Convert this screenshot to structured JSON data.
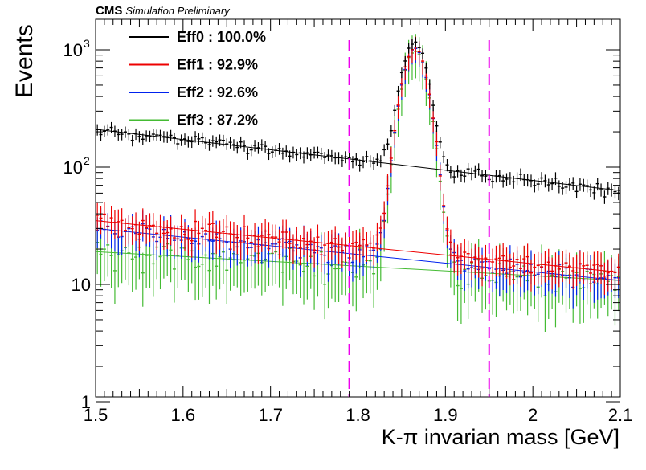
{
  "header": {
    "experiment": "CMS",
    "status": "Simulation Preliminary"
  },
  "chart_data": {
    "type": "scatter",
    "xlabel": "K-π invarian mass [GeV]",
    "ylabel": "Events",
    "xlim": [
      1.5,
      2.1
    ],
    "ylim": [
      1,
      2000
    ],
    "y_scale": "log",
    "x_ticks": [
      "1.5",
      "1.6",
      "1.7",
      "1.8",
      "1.9",
      "2",
      "2.1"
    ],
    "y_ticks": [
      {
        "value": 1,
        "label": "1"
      },
      {
        "value": 10,
        "label": "10"
      },
      {
        "value": 100,
        "label": "10",
        "exponent": "2"
      },
      {
        "value": 1000,
        "label": "10",
        "exponent": "3"
      }
    ],
    "grid": false,
    "legend_position": "top-left",
    "vertical_lines": [
      1.79,
      1.95
    ],
    "vertical_line_color": "#ee00ee",
    "bin_width": 0.004,
    "series": [
      {
        "name": "Eff0 : 100.0%",
        "color": "#000000",
        "background_fit": {
          "x0": 1.5,
          "y0": 210,
          "x1": 2.1,
          "y1": 63
        },
        "background_noise_frac": 0.1,
        "peak": {
          "mean": 1.865,
          "sigma": 0.0125,
          "amplitude": 1060
        },
        "error_frac": 0.09
      },
      {
        "name": "Eff1 : 92.9%",
        "color": "#ee0000",
        "background_fit": {
          "x0": 1.5,
          "y0": 35,
          "x1": 2.1,
          "y1": 12.7
        },
        "background_noise_frac": 0.18,
        "peak": {
          "mean": 1.865,
          "sigma": 0.0125,
          "amplitude": 1020
        },
        "error_frac": 0.22
      },
      {
        "name": "Eff2 : 92.6%",
        "color": "#0022ee",
        "background_fit": {
          "x0": 1.5,
          "y0": 30,
          "x1": 2.1,
          "y1": 10.8
        },
        "background_noise_frac": 0.2,
        "peak": {
          "mean": 1.865,
          "sigma": 0.0125,
          "amplitude": 1000
        },
        "error_frac": 0.24
      },
      {
        "name": "Eff3 : 87.2%",
        "color": "#44bb33",
        "background_fit": {
          "x0": 1.5,
          "y0": 19,
          "x1": 2.1,
          "y1": 10.8
        },
        "background_noise_frac": 0.28,
        "peak": {
          "mean": 1.865,
          "sigma": 0.0125,
          "amplitude": 960
        },
        "error_frac": 0.4
      }
    ]
  }
}
